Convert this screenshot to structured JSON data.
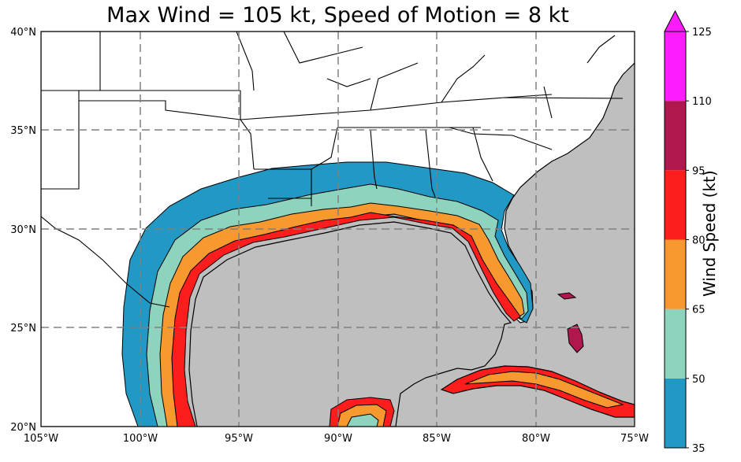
{
  "title": "Max Wind = 105 kt, Speed of Motion = 8 kt",
  "lat_labels": [
    "40°N",
    "35°N",
    "30°N",
    "25°N",
    "20°N"
  ],
  "lon_labels": [
    "105°W",
    "100°W",
    "95°W",
    "90°W",
    "85°W",
    "80°W",
    "75°W"
  ],
  "extent": {
    "lon": [
      -105,
      -75
    ],
    "lat": [
      20,
      40
    ]
  },
  "colorbar": {
    "label": "Wind Speed (kt)",
    "ticks": [
      "35",
      "50",
      "65",
      "80",
      "95",
      "110",
      "125"
    ],
    "bins": [
      {
        "from": 35,
        "to": 50,
        "color": "#2298c4"
      },
      {
        "from": 50,
        "to": 65,
        "color": "#8ed3bd"
      },
      {
        "from": 65,
        "to": 80,
        "color": "#f7992f"
      },
      {
        "from": 80,
        "to": 95,
        "color": "#fd1d1d"
      },
      {
        "from": 95,
        "to": 110,
        "color": "#b0174f"
      },
      {
        "from": 110,
        "to": 125,
        "color": "#fd1cfd"
      }
    ],
    "extend": "max"
  },
  "colors": {
    "water": "#bfbfbf",
    "land": "#ffffff",
    "grid": "#808080"
  }
}
